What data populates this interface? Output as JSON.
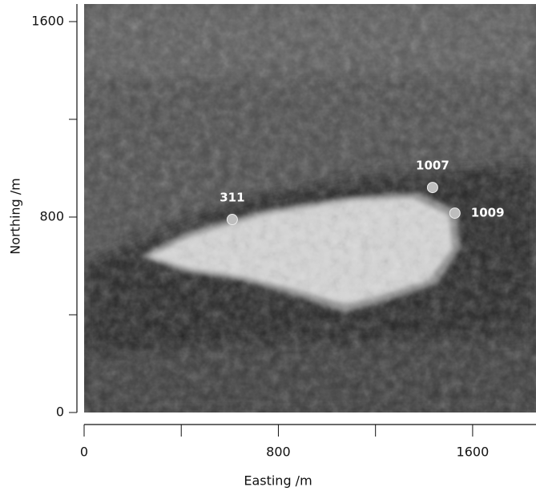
{
  "chart_data": {
    "type": "scatter",
    "xlabel": "Easting /m",
    "ylabel": "Northing /m",
    "xlim": [
      0,
      1861
    ],
    "ylim": [
      0,
      1672
    ],
    "xticks": [
      0,
      800,
      1600
    ],
    "yticks": [
      0,
      800,
      1600
    ],
    "xminor_ticks": [
      400,
      1200
    ],
    "yminor_ticks": [
      400,
      1200
    ],
    "color": "#bdbdbd",
    "labels": [
      "311",
      "1007",
      "1009"
    ],
    "x": [
      610,
      1435,
      1527
    ],
    "y": [
      790,
      921,
      816
    ]
  }
}
